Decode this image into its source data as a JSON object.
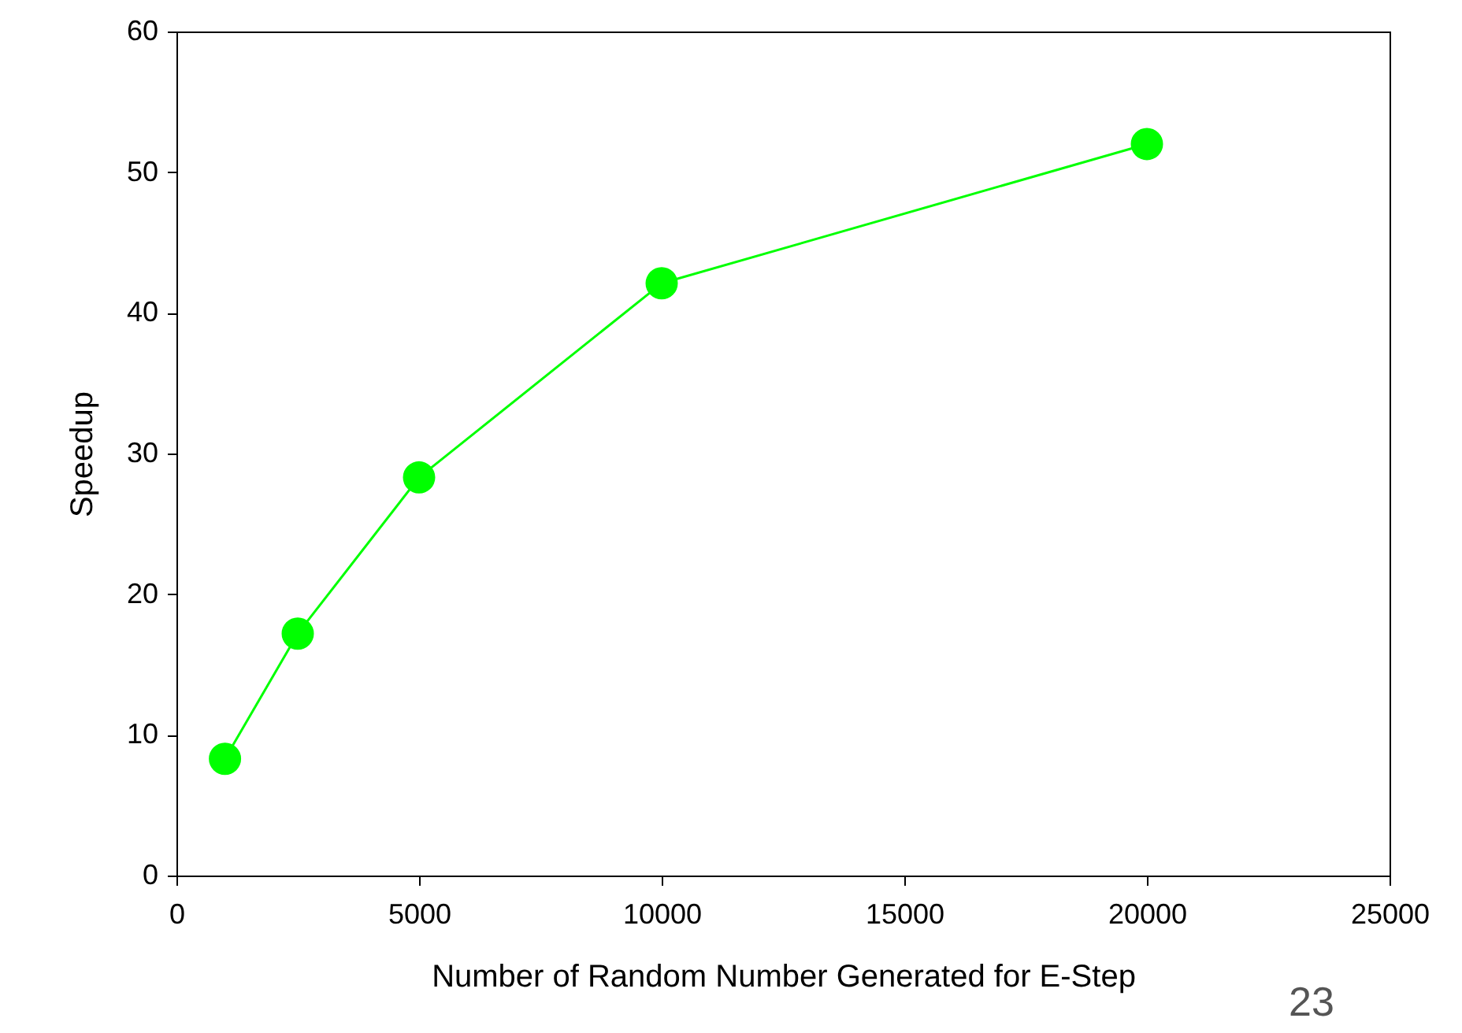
{
  "chart_data": {
    "type": "line",
    "xlabel": "Number of Random Number Generated for E-Step",
    "ylabel": "Speedup",
    "x": [
      1000,
      2500,
      5000,
      10000,
      20000
    ],
    "series": [
      {
        "color": "#00ff00",
        "values": [
          8.3,
          17.2,
          28.3,
          42.1,
          52.0
        ]
      }
    ],
    "xlim": [
      0,
      25000
    ],
    "xticks": [
      0,
      5000,
      10000,
      15000,
      20000,
      25000
    ],
    "ylim": [
      0,
      60
    ],
    "yticks": [
      0,
      10,
      20,
      30,
      40,
      50,
      60
    ],
    "marker": "circle",
    "line_style": "solid",
    "grid": false,
    "annotations": [
      "23"
    ]
  }
}
